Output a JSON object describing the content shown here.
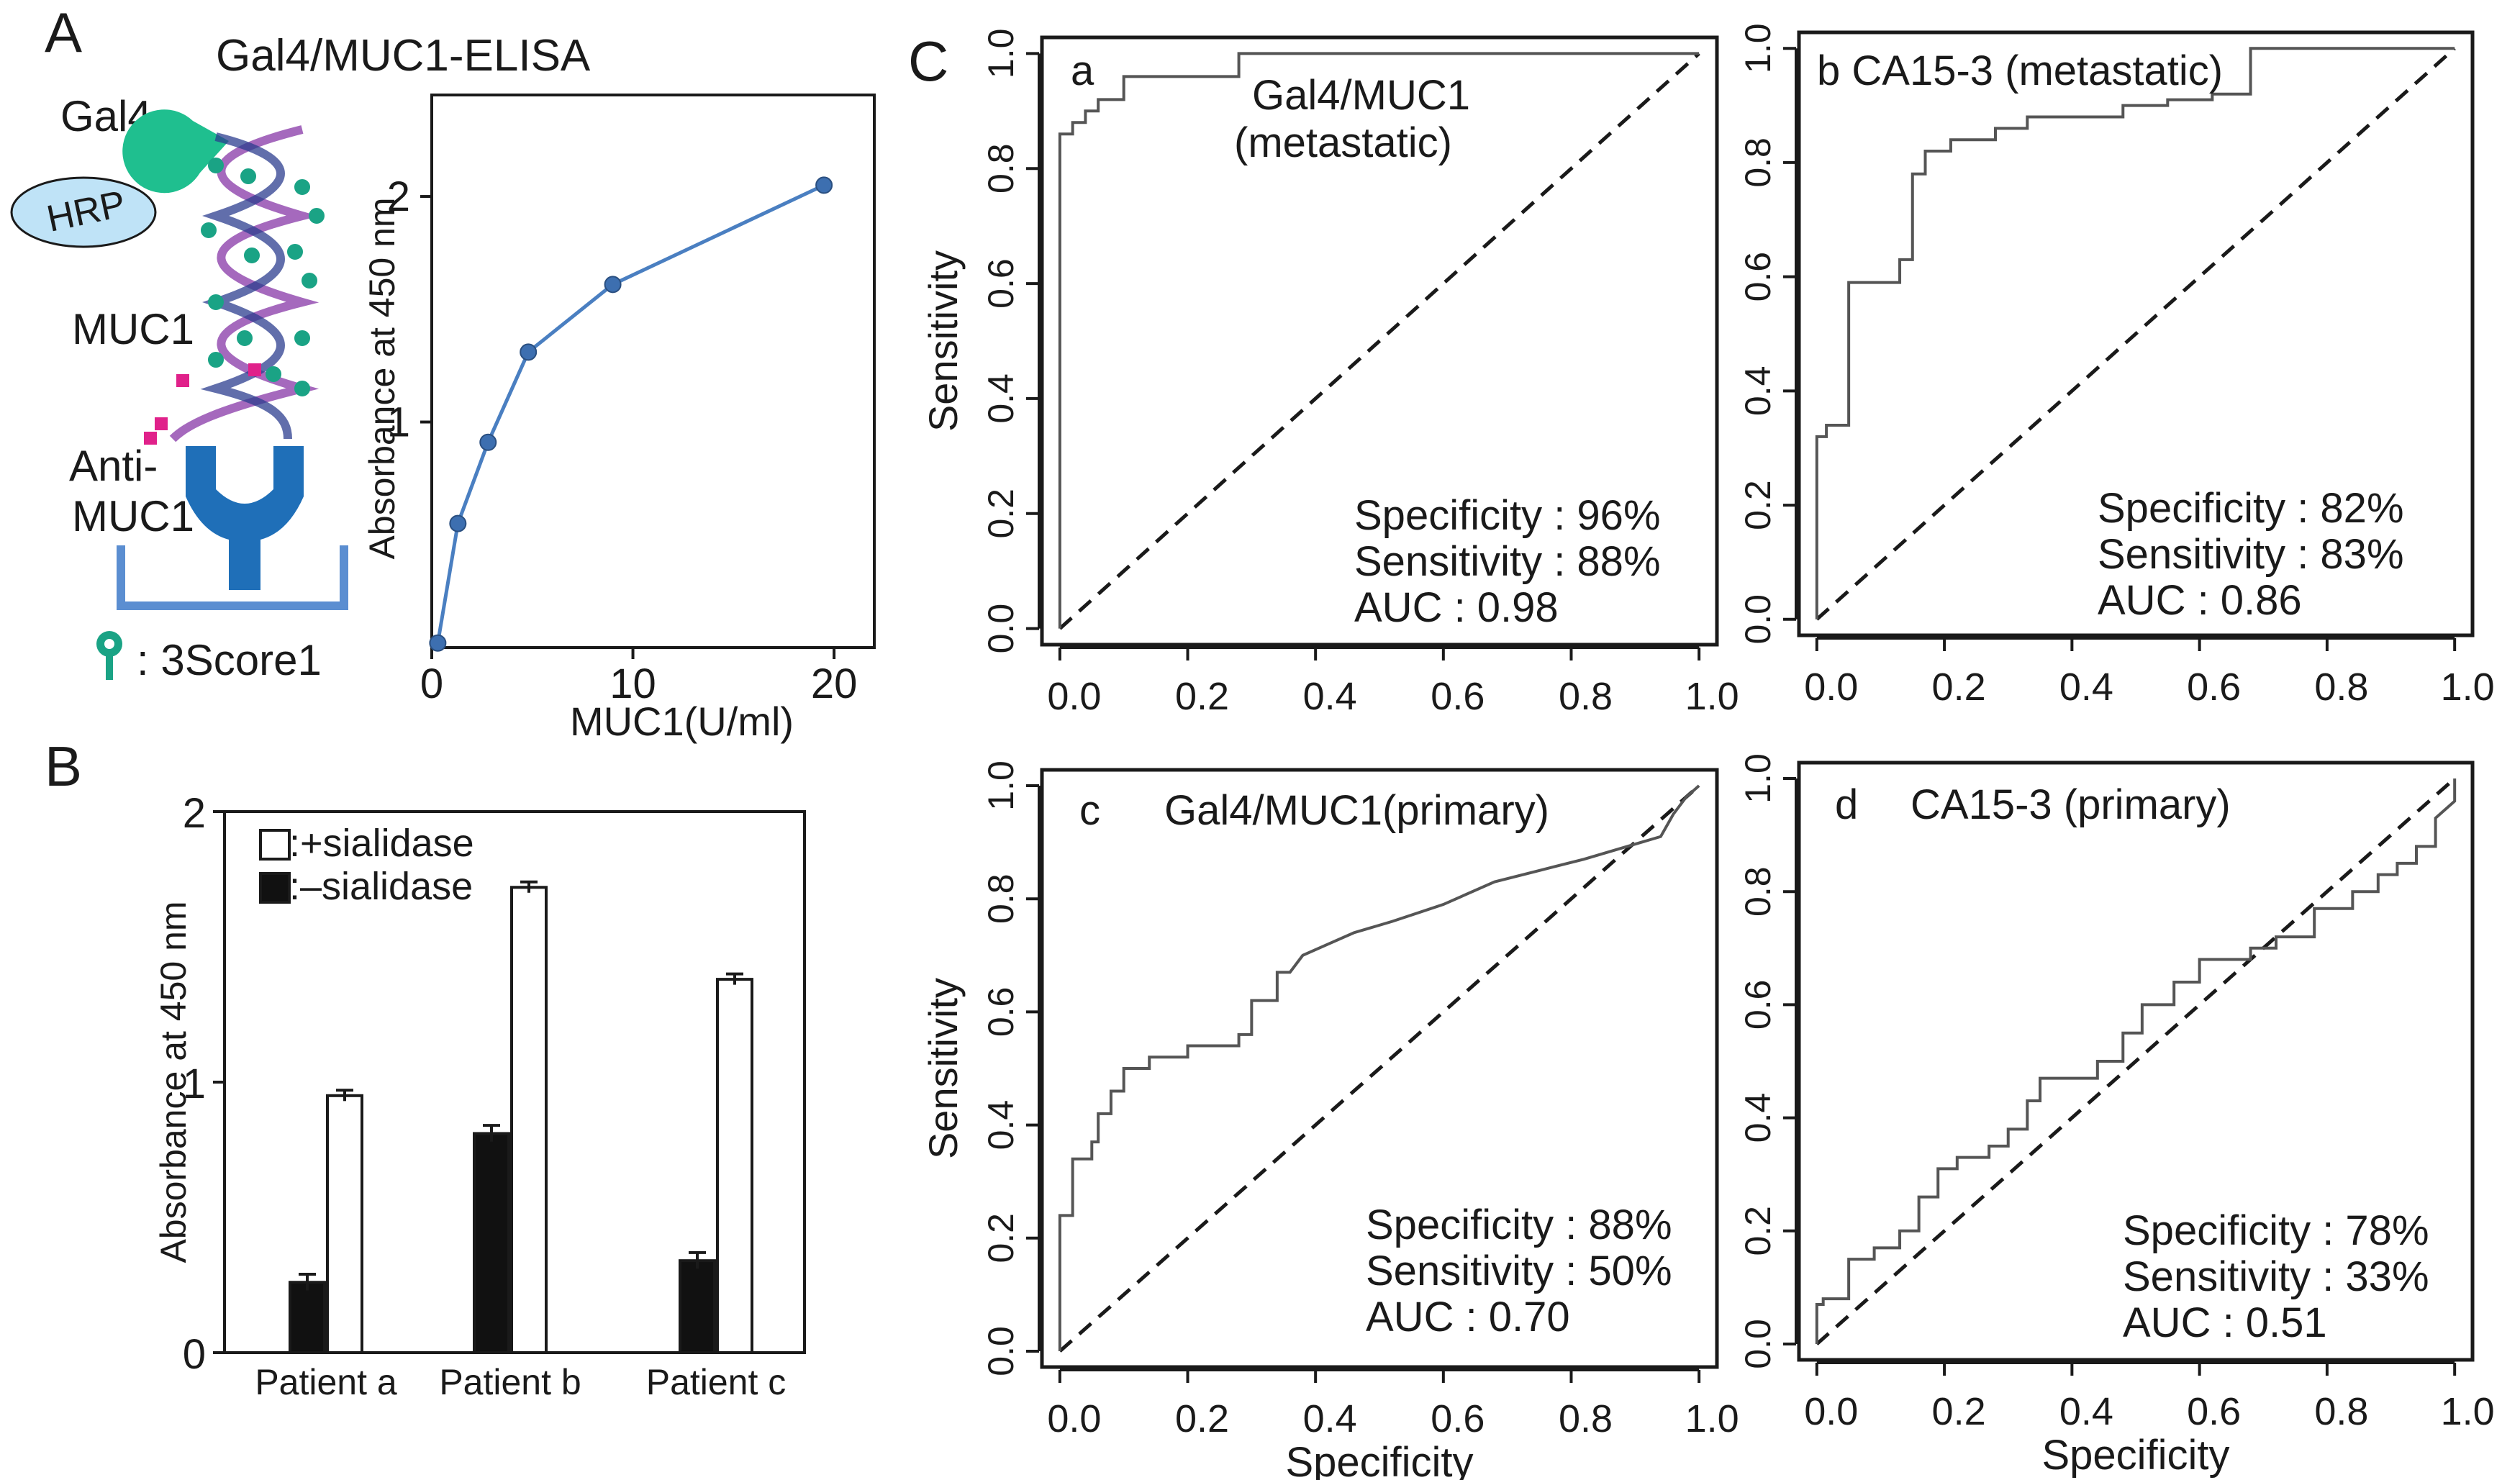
{
  "panel_labels": {
    "A": "A",
    "B": "B",
    "C": "C"
  },
  "diagram": {
    "title": "Gal4/MUC1-ELISA",
    "labels": {
      "gal4": "Gal4",
      "hrp": "HRP",
      "muc1": "MUC1",
      "anti1": "Anti-",
      "anti2": "MUC1",
      "legend": ": 3Score1"
    },
    "colors": {
      "gal4": "#1fbf8f",
      "hrp": "#bfe3f7",
      "antibody": "#1f6fb8",
      "helix": "#8e44ad",
      "glycan": "#1aa385",
      "sialyl": "#e0218a"
    }
  },
  "chart_data": [
    {
      "id": "A",
      "type": "line",
      "title": "",
      "xlabel": "MUC1(U/ml)",
      "ylabel": "Absorbance at 450 nm",
      "xlim": [
        0,
        22
      ],
      "ylim": [
        0,
        2.45
      ],
      "xticks": [
        0,
        10,
        20
      ],
      "yticks": [
        1,
        2
      ],
      "x": [
        0.3,
        1.3,
        2.8,
        4.8,
        9.0,
        19.5
      ],
      "y": [
        0.02,
        0.55,
        0.91,
        1.31,
        1.61,
        2.05
      ],
      "color": "#4a7fc1"
    },
    {
      "id": "B",
      "type": "bar",
      "categories": [
        "Patient a",
        "Patient b",
        "Patient c"
      ],
      "ylabel": "Absorbance at 450 nm",
      "ylim": [
        0,
        2
      ],
      "yticks": [
        0,
        1,
        2
      ],
      "series": [
        {
          "name": ":–sialidase",
          "values": [
            0.26,
            0.81,
            0.34
          ],
          "errors": [
            0.03,
            0.03,
            0.03
          ],
          "fill": "#111111"
        },
        {
          "name": ":+sialidase",
          "values": [
            0.95,
            1.72,
            1.38
          ],
          "errors": [
            0.02,
            0.02,
            0.02
          ],
          "fill": "#ffffff"
        }
      ]
    },
    {
      "id": "Ca",
      "type": "line",
      "title": "a",
      "curve_label_1": "Gal4/MUC1",
      "curve_label_2": "(metastatic)",
      "xlabel": "",
      "ylabel": "Sensitivity",
      "xlim": [
        0,
        1
      ],
      "ylim": [
        0,
        1
      ],
      "xticks": [
        "0.0",
        "0.2",
        "0.4",
        "0.6",
        "0.8",
        "1.0"
      ],
      "yticks": [
        "0.0",
        "0.2",
        "0.4",
        "0.6",
        "0.8",
        "1.0"
      ],
      "roc": [
        [
          0,
          0
        ],
        [
          0,
          0.86
        ],
        [
          0.02,
          0.86
        ],
        [
          0.02,
          0.88
        ],
        [
          0.04,
          0.88
        ],
        [
          0.04,
          0.9
        ],
        [
          0.06,
          0.9
        ],
        [
          0.06,
          0.92
        ],
        [
          0.1,
          0.92
        ],
        [
          0.1,
          0.96
        ],
        [
          0.28,
          0.96
        ],
        [
          0.28,
          1
        ],
        [
          1,
          1
        ]
      ],
      "stats": [
        "Specificity : 96%",
        "Sensitivity : 88%",
        "AUC : 0.98"
      ]
    },
    {
      "id": "Cb",
      "type": "line",
      "title": "b CA15-3 (metastatic)",
      "xlabel": "",
      "ylabel": "",
      "xlim": [
        0,
        1
      ],
      "ylim": [
        0,
        1
      ],
      "xticks": [
        "0.0",
        "0.2",
        "0.4",
        "0.6",
        "0.8",
        "1.0"
      ],
      "yticks": [
        "0.0",
        "0.2",
        "0.4",
        "0.6",
        "0.8",
        "1.0"
      ],
      "roc": [
        [
          0,
          0
        ],
        [
          0,
          0.32
        ],
        [
          0.015,
          0.32
        ],
        [
          0.015,
          0.34
        ],
        [
          0.05,
          0.34
        ],
        [
          0.05,
          0.59
        ],
        [
          0.13,
          0.59
        ],
        [
          0.13,
          0.63
        ],
        [
          0.15,
          0.63
        ],
        [
          0.15,
          0.78
        ],
        [
          0.17,
          0.78
        ],
        [
          0.17,
          0.82
        ],
        [
          0.21,
          0.82
        ],
        [
          0.21,
          0.84
        ],
        [
          0.28,
          0.84
        ],
        [
          0.28,
          0.86
        ],
        [
          0.33,
          0.86
        ],
        [
          0.33,
          0.88
        ],
        [
          0.48,
          0.88
        ],
        [
          0.48,
          0.9
        ],
        [
          0.55,
          0.9
        ],
        [
          0.55,
          0.91
        ],
        [
          0.62,
          0.91
        ],
        [
          0.62,
          0.92
        ],
        [
          0.68,
          0.92
        ],
        [
          0.68,
          1
        ],
        [
          1,
          1
        ]
      ],
      "stats": [
        "Specificity : 82%",
        "Sensitivity : 83%",
        "AUC : 0.86"
      ]
    },
    {
      "id": "Cc",
      "type": "line",
      "title": "c",
      "curve_label_1": "Gal4/MUC1(primary)",
      "xlabel": "Specificity",
      "ylabel": "Sensitivity",
      "xlim": [
        0,
        1
      ],
      "ylim": [
        0,
        1
      ],
      "xticks": [
        "0.0",
        "0.2",
        "0.4",
        "0.6",
        "0.8",
        "1.0"
      ],
      "yticks": [
        "0.0",
        "0.2",
        "0.4",
        "0.6",
        "0.8",
        "1.0"
      ],
      "roc": [
        [
          0,
          0
        ],
        [
          0,
          0.24
        ],
        [
          0.02,
          0.24
        ],
        [
          0.02,
          0.34
        ],
        [
          0.05,
          0.34
        ],
        [
          0.05,
          0.37
        ],
        [
          0.06,
          0.37
        ],
        [
          0.06,
          0.42
        ],
        [
          0.08,
          0.42
        ],
        [
          0.08,
          0.46
        ],
        [
          0.1,
          0.46
        ],
        [
          0.1,
          0.5
        ],
        [
          0.14,
          0.5
        ],
        [
          0.14,
          0.52
        ],
        [
          0.2,
          0.52
        ],
        [
          0.2,
          0.54
        ],
        [
          0.28,
          0.54
        ],
        [
          0.28,
          0.56
        ],
        [
          0.3,
          0.56
        ],
        [
          0.3,
          0.62
        ],
        [
          0.34,
          0.62
        ],
        [
          0.34,
          0.67
        ],
        [
          0.36,
          0.67
        ],
        [
          0.38,
          0.7
        ],
        [
          0.42,
          0.72
        ],
        [
          0.46,
          0.74
        ],
        [
          0.52,
          0.76
        ],
        [
          0.6,
          0.79
        ],
        [
          0.68,
          0.83
        ],
        [
          0.75,
          0.85
        ],
        [
          0.82,
          0.87
        ],
        [
          0.88,
          0.89
        ],
        [
          0.94,
          0.91
        ],
        [
          0.96,
          0.95
        ],
        [
          0.98,
          0.98
        ],
        [
          1,
          1
        ]
      ],
      "stats": [
        "Specificity : 88%",
        "Sensitivity : 50%",
        "AUC : 0.70"
      ]
    },
    {
      "id": "Cd",
      "type": "line",
      "title": "d",
      "curve_label_1": "CA15-3 (primary)",
      "xlabel": "Specificity",
      "ylabel": "",
      "xlim": [
        0,
        1
      ],
      "ylim": [
        0,
        1
      ],
      "xticks": [
        "0.0",
        "0.2",
        "0.4",
        "0.6",
        "0.8",
        "1.0"
      ],
      "yticks": [
        "0.0",
        "0.2",
        "0.4",
        "0.6",
        "0.8",
        "1.0"
      ],
      "roc": [
        [
          0,
          0
        ],
        [
          0,
          0.07
        ],
        [
          0.01,
          0.07
        ],
        [
          0.01,
          0.08
        ],
        [
          0.05,
          0.08
        ],
        [
          0.05,
          0.15
        ],
        [
          0.09,
          0.15
        ],
        [
          0.09,
          0.17
        ],
        [
          0.13,
          0.17
        ],
        [
          0.13,
          0.2
        ],
        [
          0.16,
          0.2
        ],
        [
          0.16,
          0.26
        ],
        [
          0.19,
          0.26
        ],
        [
          0.19,
          0.31
        ],
        [
          0.22,
          0.31
        ],
        [
          0.22,
          0.33
        ],
        [
          0.27,
          0.33
        ],
        [
          0.27,
          0.35
        ],
        [
          0.3,
          0.35
        ],
        [
          0.3,
          0.38
        ],
        [
          0.33,
          0.38
        ],
        [
          0.33,
          0.43
        ],
        [
          0.35,
          0.43
        ],
        [
          0.35,
          0.47
        ],
        [
          0.44,
          0.47
        ],
        [
          0.44,
          0.5
        ],
        [
          0.48,
          0.5
        ],
        [
          0.48,
          0.55
        ],
        [
          0.51,
          0.55
        ],
        [
          0.51,
          0.6
        ],
        [
          0.56,
          0.6
        ],
        [
          0.56,
          0.64
        ],
        [
          0.6,
          0.64
        ],
        [
          0.6,
          0.68
        ],
        [
          0.68,
          0.68
        ],
        [
          0.68,
          0.7
        ],
        [
          0.72,
          0.7
        ],
        [
          0.72,
          0.72
        ],
        [
          0.78,
          0.72
        ],
        [
          0.78,
          0.77
        ],
        [
          0.84,
          0.77
        ],
        [
          0.84,
          0.8
        ],
        [
          0.88,
          0.8
        ],
        [
          0.88,
          0.83
        ],
        [
          0.91,
          0.83
        ],
        [
          0.91,
          0.85
        ],
        [
          0.94,
          0.85
        ],
        [
          0.94,
          0.88
        ],
        [
          0.97,
          0.88
        ],
        [
          0.97,
          0.93
        ],
        [
          1,
          0.96
        ],
        [
          1,
          1
        ]
      ],
      "stats": [
        "Specificity : 78%",
        "Sensitivity : 33%",
        "AUC : 0.51"
      ]
    }
  ]
}
